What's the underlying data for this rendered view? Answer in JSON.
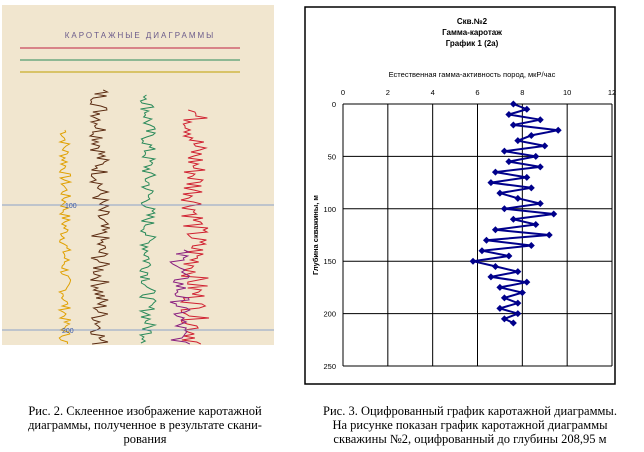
{
  "figure_left": {
    "labels": [
      "КАРОТАЖНЫЕ ДИАГРАММЫ",
      "100",
      "200"
    ],
    "caption": [
      "Рис. 2. Склеенное изображение каротажной",
      "диаграммы, полученное в результате скани-",
      "рования"
    ]
  },
  "chart_data": {
    "type": "scatter",
    "title": [
      "Скв.№2",
      "Гамма-каротаж",
      "График 1 (2а)"
    ],
    "x_label": "Естественная гамма-активность пород, мкР/час",
    "y_label": "Глубина скважины, м",
    "xlim": [
      0,
      12
    ],
    "xticks": [
      0,
      2,
      4,
      6,
      8,
      10,
      12
    ],
    "ylim": [
      0,
      250
    ],
    "yticks": [
      0,
      50,
      100,
      150,
      200,
      250
    ],
    "y_reversed": true,
    "grid": true,
    "color": "#00008b",
    "y": [
      0,
      5,
      10,
      15,
      20,
      25,
      30,
      35,
      40,
      45,
      50,
      55,
      60,
      65,
      70,
      75,
      80,
      85,
      90,
      95,
      100,
      105,
      110,
      115,
      120,
      125,
      130,
      135,
      140,
      145,
      150,
      155,
      160,
      165,
      170,
      175,
      180,
      185,
      190,
      195,
      200,
      205,
      208.95
    ],
    "x": [
      7.6,
      8.2,
      7.4,
      8.8,
      7.6,
      9.6,
      8.4,
      7.8,
      9.0,
      7.2,
      8.6,
      7.4,
      8.8,
      6.8,
      8.2,
      6.6,
      8.4,
      7.0,
      7.8,
      8.8,
      7.2,
      9.4,
      7.6,
      8.6,
      6.8,
      9.2,
      6.4,
      8.4,
      6.2,
      7.4,
      5.8,
      6.8,
      7.8,
      6.6,
      8.2,
      7.0,
      8.0,
      7.2,
      7.8,
      7.0,
      7.8,
      7.2,
      7.6
    ]
  },
  "caption_right": [
    "Рис. 3. Оцифрованный график каротажной диаграммы.",
    "На рисунке показан график каротажной диаграммы",
    "скважины №2, оцифрованный до глубины 208,95 м"
  ]
}
